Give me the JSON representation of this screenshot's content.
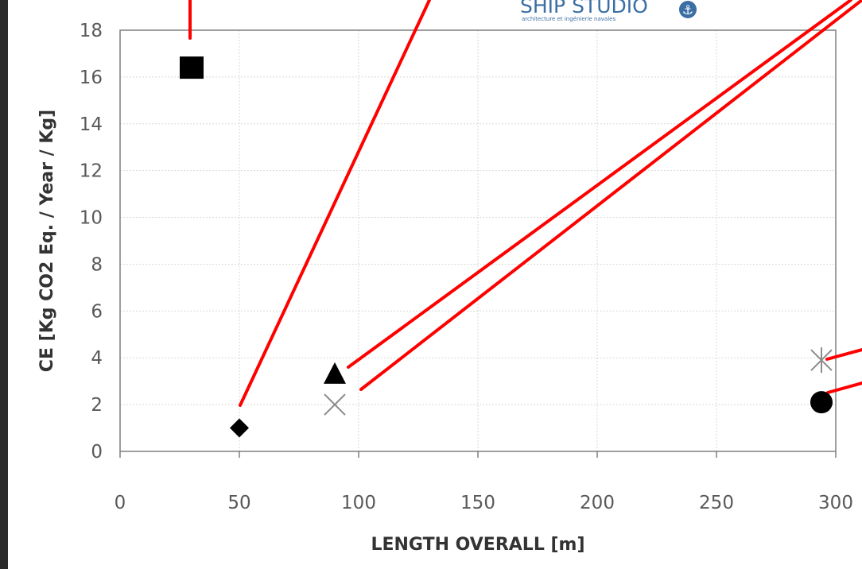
{
  "logo": {
    "name": "SHIP STUDIO",
    "tagline": "architecture et ingénierie navales",
    "color": "#3a6ea5"
  },
  "annotation_color": "#ff0000",
  "chart_data": {
    "type": "scatter",
    "xlabel": "LENGTH OVERALL [m]",
    "ylabel": "CE [Kg CO2 Eq. / Year / Kg]",
    "xlim": [
      0,
      300
    ],
    "ylim": [
      0,
      18
    ],
    "xticks": [
      0,
      50,
      100,
      150,
      200,
      250,
      300
    ],
    "yticks": [
      0,
      2,
      4,
      6,
      8,
      10,
      12,
      14,
      16,
      18
    ],
    "grid": true,
    "series": [
      {
        "marker": "square",
        "points": [
          {
            "x": 30,
            "y": 16.4
          }
        ]
      },
      {
        "marker": "diamond",
        "points": [
          {
            "x": 50,
            "y": 1.0
          }
        ]
      },
      {
        "marker": "triangle",
        "points": [
          {
            "x": 90,
            "y": 3.3
          }
        ]
      },
      {
        "marker": "x",
        "points": [
          {
            "x": 90,
            "y": 2.0
          }
        ]
      },
      {
        "marker": "star",
        "points": [
          {
            "x": 294,
            "y": 3.9
          }
        ]
      },
      {
        "marker": "circle",
        "points": [
          {
            "x": 294,
            "y": 2.1
          }
        ]
      }
    ]
  }
}
